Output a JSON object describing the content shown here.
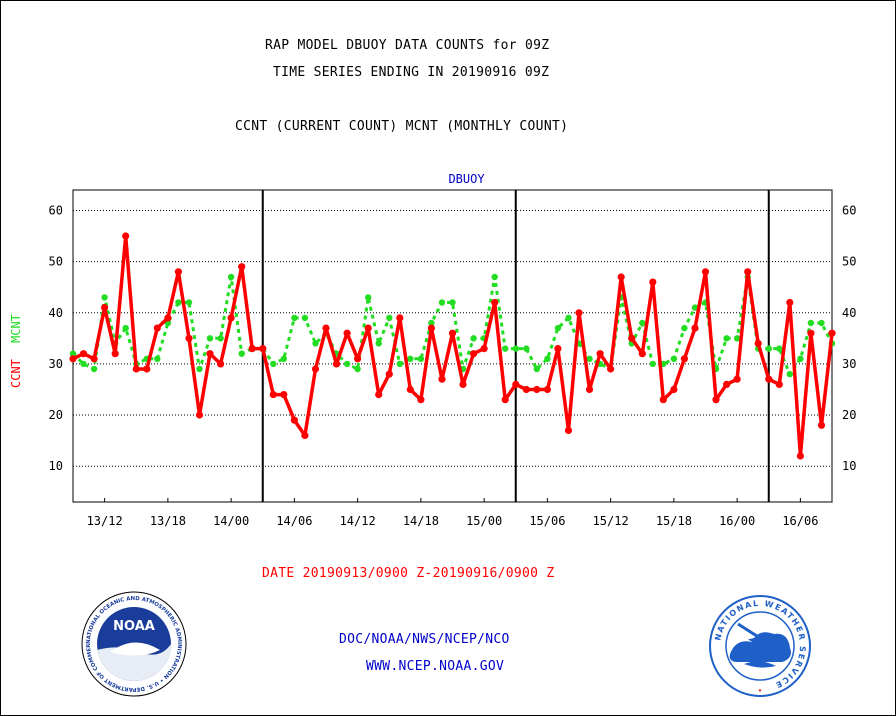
{
  "header": {
    "title_line1": "RAP MODEL DBUOY DATA COUNTS for 09Z",
    "title_line2": "TIME SERIES ENDING IN 20190916 09Z",
    "title_line3": "CCNT (CURRENT COUNT) MCNT (MONTHLY COUNT)"
  },
  "footer": {
    "date_range": "DATE 20190913/0900 Z-20190916/0900 Z",
    "org": "DOC/NOAA/NWS/NCEP/NCO",
    "url": "WWW.NCEP.NOAA.GOV"
  },
  "logos": {
    "noaa_text": "NOAA",
    "noaa_ring": "NATIONAL OCEANIC AND ATMOSPHERIC ADMINISTRATION • U.S. DEPARTMENT OF COMMERCE",
    "nws_ring": "NATIONAL WEATHER SERVICE"
  },
  "colors": {
    "ccnt": "#ff0000",
    "mcnt": "#22dd22",
    "header": "#000000",
    "footer_date": "#ff0000",
    "footer_org": "#0000cc",
    "station": "#0000cc",
    "noaa_blue": "#1a3d9c",
    "nws_blue": "#1f5fc8"
  },
  "chart_data": {
    "type": "line",
    "title": "DBUOY",
    "ylabel_left_ccnt": "CCNT",
    "ylabel_left_mcnt": "MCNT",
    "ylim": [
      3,
      64
    ],
    "yticks": [
      10,
      20,
      30,
      40,
      50,
      60
    ],
    "xlim_hours": [
      0,
      72
    ],
    "xtick_labels": [
      "13/12",
      "13/18",
      "14/00",
      "14/06",
      "14/12",
      "14/18",
      "15/00",
      "15/06",
      "15/12",
      "15/18",
      "16/00",
      "16/06"
    ],
    "grid": "horizontal-dotted",
    "x_hours": [
      0,
      1,
      2,
      3,
      4,
      5,
      6,
      7,
      8,
      9,
      10,
      11,
      12,
      13,
      14,
      15,
      16,
      17,
      18,
      19,
      20,
      21,
      22,
      23,
      24,
      25,
      26,
      27,
      28,
      29,
      30,
      31,
      32,
      33,
      34,
      35,
      36,
      37,
      38,
      39,
      40,
      41,
      42,
      43,
      44,
      45,
      46,
      47,
      48,
      49,
      50,
      51,
      52,
      53,
      54,
      55,
      56,
      57,
      58,
      59,
      60,
      61,
      62,
      63,
      64,
      65,
      66,
      67,
      68,
      69,
      70,
      71,
      72
    ],
    "series": [
      {
        "name": "CCNT",
        "values": [
          31,
          32,
          31,
          41,
          32,
          55,
          29,
          29,
          37,
          39,
          48,
          35,
          20,
          32,
          30,
          39,
          49,
          33,
          33,
          24,
          24,
          19,
          16,
          29,
          37,
          30,
          36,
          31,
          37,
          24,
          28,
          39,
          25,
          23,
          37,
          27,
          36,
          26,
          32,
          33,
          42,
          23,
          26,
          25,
          25,
          25,
          33,
          17,
          40,
          25,
          32,
          29,
          47,
          35,
          32,
          46,
          23,
          25,
          31,
          37,
          48,
          23,
          26,
          27,
          48,
          34,
          27,
          26,
          42,
          12,
          36,
          18,
          36
        ]
      },
      {
        "name": "MCNT",
        "values": [
          32,
          30,
          29,
          43,
          34,
          37,
          30,
          31,
          31,
          38,
          42,
          42,
          29,
          35,
          35,
          47,
          32,
          33,
          33,
          30,
          31,
          39,
          39,
          34,
          36,
          32,
          30,
          29,
          43,
          34,
          39,
          30,
          31,
          31,
          38,
          42,
          42,
          29,
          35,
          35,
          47,
          33,
          33,
          33,
          29,
          31,
          37,
          39,
          34,
          31,
          30,
          29,
          43,
          34,
          38,
          30,
          30,
          31,
          37,
          41,
          42,
          29,
          35,
          35,
          47,
          33,
          33,
          33,
          28,
          31,
          38,
          38,
          34
        ]
      }
    ],
    "vertical_markers_hours": [
      18,
      42,
      66
    ]
  }
}
